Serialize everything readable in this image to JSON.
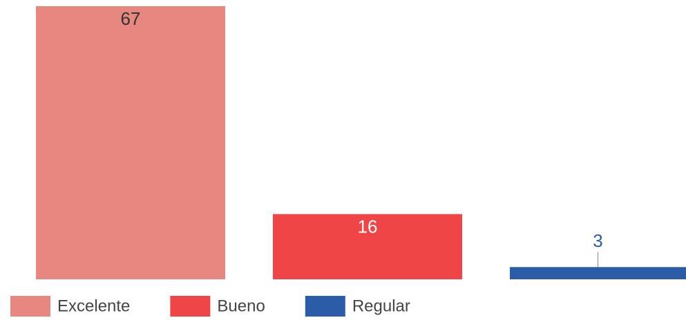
{
  "chart_data": {
    "type": "bar",
    "categories": [
      "Excelente",
      "Bueno",
      "Regular"
    ],
    "values": [
      67,
      16,
      3
    ],
    "colors": [
      "#e8877f",
      "#ef4547",
      "#2b5ca8"
    ],
    "label_colors": [
      "#333333",
      "#ffffff",
      "#2b5ca8"
    ],
    "legend": "bottom"
  }
}
